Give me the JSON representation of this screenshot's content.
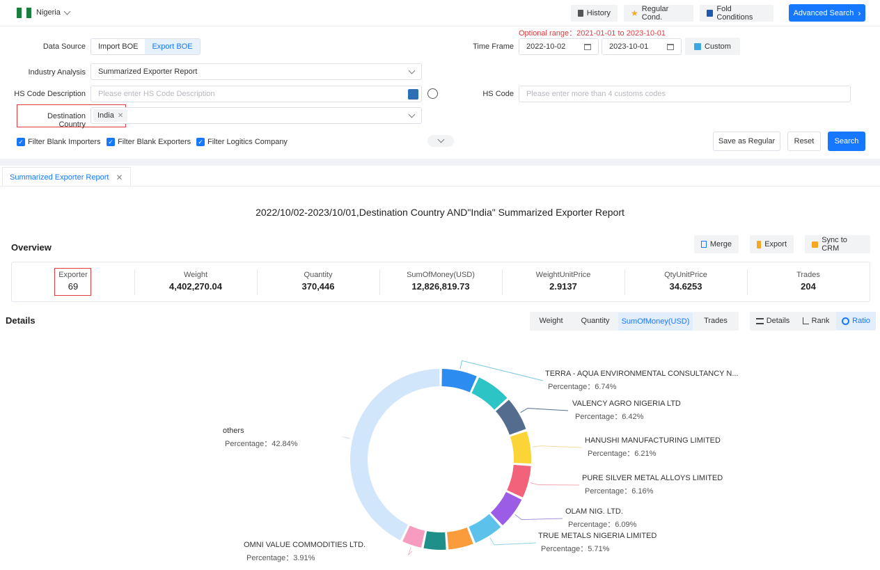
{
  "header": {
    "country": "Nigeria",
    "buttons": {
      "history": "History",
      "regular": "Regular Cond.",
      "fold": "Fold Conditions",
      "advanced": "Advanced Search"
    }
  },
  "form": {
    "optional_range": "Optional range：2021-01-01 to 2023-10-01",
    "data_source_label": "Data Source",
    "data_source_options": [
      "Import BOE",
      "Export BOE"
    ],
    "time_frame_label": "Time Frame",
    "date_from": "2022-10-02",
    "date_to": "2023-10-01",
    "custom_label": "Custom",
    "industry_label": "Industry Analysis",
    "industry_value": "Summarized Exporter Report",
    "hs_desc_label": "HS Code Description",
    "hs_desc_placeholder": "Please enter HS Code Description",
    "hs_code_label": "HS Code",
    "hs_code_placeholder": "Please enter more than 4 customs codes",
    "dest_label": "Destination Country",
    "dest_tag": "India",
    "checks": [
      "Filter Blank Importers",
      "Filter Blank Exporters",
      "Filter Logitics Company"
    ],
    "save_regular": "Save as Regular",
    "reset": "Reset",
    "search": "Search"
  },
  "tab": {
    "label": "Summarized Exporter Report"
  },
  "report_title": "2022/10/02-2023/10/01,Destination Country AND\"India\" Summarized Exporter Report",
  "overview": {
    "title": "Overview",
    "actions": {
      "merge": "Merge",
      "export": "Export",
      "sync": "Sync to CRM"
    },
    "stats": [
      {
        "label": "Exporter",
        "value": "69"
      },
      {
        "label": "Weight",
        "value": "4,402,270.04"
      },
      {
        "label": "Quantity",
        "value": "370,446"
      },
      {
        "label": "SumOfMoney(USD)",
        "value": "12,826,819.73"
      },
      {
        "label": "WeightUnitPrice",
        "value": "2.9137"
      },
      {
        "label": "QtyUnitPrice",
        "value": "34.6253"
      },
      {
        "label": "Trades",
        "value": "204"
      }
    ]
  },
  "details": {
    "title": "Details",
    "metric_tabs": [
      "Weight",
      "Quantity",
      "SumOfMoney(USD)",
      "Trades"
    ],
    "active_metric": "SumOfMoney(USD)",
    "view_tabs": [
      "Details",
      "Rank",
      "Ratio"
    ],
    "active_view": "Ratio"
  },
  "chart_data": {
    "type": "pie",
    "donut": true,
    "value_label": "Percentage",
    "slices": [
      {
        "name": "TERRA - AQUA ENVIRONMENTAL CONSULTANCY N...",
        "pct_text": "6.74%",
        "color": "#2d8cf0",
        "line": "#7ec9e4"
      },
      {
        "name": "",
        "pct_text": "",
        "color": "#2cc4c4",
        "line": "#2cc4c4"
      },
      {
        "name": "VALENCY AGRO NIGERIA LTD",
        "pct_text": "6.42%",
        "color": "#546d8e",
        "line": "#546d8e"
      },
      {
        "name": "HANUSHI MANUFACTURING LIMITED",
        "pct_text": "6.21%",
        "color": "#fbd437",
        "line": "#f3dca0"
      },
      {
        "name": "PURE SILVER METAL ALLOYS LIMITED",
        "pct_text": "6.16%",
        "color": "#f2637b",
        "line": "#f2a6b3"
      },
      {
        "name": "OLAM NIG. LTD.",
        "pct_text": "6.09%",
        "color": "#9b5de5",
        "line": "#a990e0"
      },
      {
        "name": "TRUE METALS NIGERIA LIMITED",
        "pct_text": "5.71%",
        "color": "#5cc2ec",
        "line": "#8fd3ef"
      },
      {
        "name": "",
        "pct_text": "",
        "color": "#fa9b3c",
        "line": "#fa9b3c"
      },
      {
        "name": "",
        "pct_text": "",
        "color": "#1e9089",
        "line": "#1e9089"
      },
      {
        "name": "OMNI VALUE COMMODITIES LTD.",
        "pct_text": "3.91%",
        "color": "#f79bc0",
        "line": "#f3b6cc"
      },
      {
        "name": "others",
        "pct_text": "42.84%",
        "color": "#d2e6fb",
        "line": "#d7e3ef"
      }
    ],
    "values": [
      6.74,
      6.6,
      6.42,
      6.21,
      6.16,
      6.09,
      5.71,
      4.9,
      4.4,
      3.91,
      42.84
    ]
  }
}
